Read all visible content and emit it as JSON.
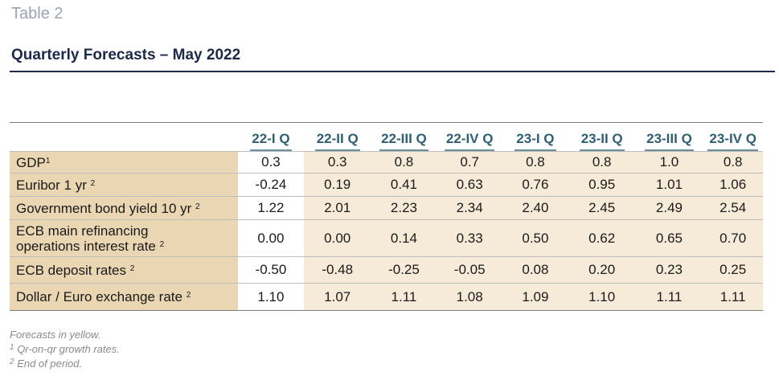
{
  "header": {
    "table_label": "Table 2",
    "title": "Quarterly Forecasts – May 2022"
  },
  "columns": [
    "22-I Q",
    "22-II Q",
    "22-III Q",
    "22-IV Q",
    "23-I Q",
    "23-II Q",
    "23-III Q",
    "23-IV Q"
  ],
  "rows": [
    {
      "label": "GDP",
      "note": "1",
      "values": [
        "0.3",
        "0.3",
        "0.8",
        "0.7",
        "0.8",
        "0.8",
        "1.0",
        "0.8"
      ]
    },
    {
      "label": "Euribor 1 yr",
      "note": "2",
      "values": [
        "-0.24",
        "0.19",
        "0.41",
        "0.63",
        "0.76",
        "0.95",
        "1.01",
        "1.06"
      ]
    },
    {
      "label": "Government bond yield 10 yr",
      "note": "2",
      "values": [
        "1.22",
        "2.01",
        "2.23",
        "2.34",
        "2.40",
        "2.45",
        "2.49",
        "2.54"
      ]
    },
    {
      "label_line1": "ECB main refinancing",
      "label_line2": "operations interest rate",
      "note": "2",
      "values": [
        "0.00",
        "0.00",
        "0.14",
        "0.33",
        "0.50",
        "0.62",
        "0.65",
        "0.70"
      ]
    },
    {
      "label": "ECB deposit rates",
      "note": "2",
      "values": [
        "-0.50",
        "-0.48",
        "-0.25",
        "-0.05",
        "0.08",
        "0.20",
        "0.23",
        "0.25"
      ]
    },
    {
      "label": "Dollar / Euro exchange rate",
      "note": "2",
      "values": [
        "1.10",
        "1.07",
        "1.11",
        "1.08",
        "1.09",
        "1.10",
        "1.11",
        "1.11"
      ]
    }
  ],
  "footnotes": {
    "line1": "Forecasts in yellow.",
    "line2_mark": "1",
    "line2": "Qr-on-qr growth rates.",
    "line3_mark": "2",
    "line3": "End of period."
  },
  "colors": {
    "label_column": "#ead6b2",
    "forecast_cells": "#f6ebd8",
    "header_text": "#2e5f72",
    "title_text": "#1c2a47"
  }
}
